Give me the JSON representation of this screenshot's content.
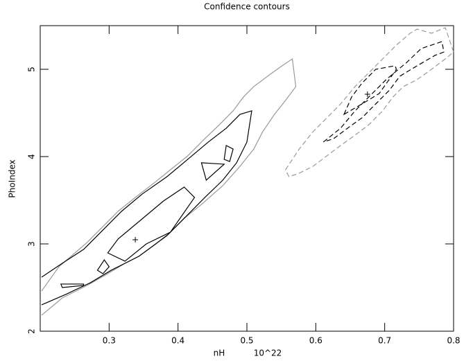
{
  "chart_data": {
    "type": "contour",
    "title": "Confidence contours",
    "x_label": "nH",
    "x_unit": "10^22",
    "y_label": "PhoIndex",
    "xlim": [
      0.2,
      0.8
    ],
    "ylim": [
      2,
      5.5
    ],
    "xticks": [
      0.3,
      0.4,
      0.5,
      0.6,
      0.7,
      0.8
    ],
    "yticks": [
      2,
      3,
      4,
      5
    ],
    "series": [
      {
        "color": "#999999",
        "dash": false,
        "closed": false,
        "x": [
          0.202,
          0.232,
          0.268,
          0.298,
          0.323,
          0.343,
          0.364,
          0.389,
          0.409,
          0.434,
          0.465,
          0.49,
          0.51,
          0.523,
          0.54,
          0.556,
          0.571,
          0.566,
          0.551,
          0.53,
          0.51,
          0.495,
          0.48,
          0.46,
          0.439,
          0.414,
          0.389,
          0.364,
          0.338,
          0.313,
          0.288,
          0.268,
          0.247,
          0.227,
          0.202
        ],
        "y": [
          2.183,
          2.381,
          2.524,
          2.659,
          2.778,
          2.857,
          2.976,
          3.135,
          3.294,
          3.452,
          3.667,
          3.889,
          4.087,
          4.286,
          4.484,
          4.643,
          4.802,
          5.119,
          5.04,
          4.921,
          4.802,
          4.683,
          4.524,
          4.365,
          4.206,
          4.008,
          3.849,
          3.69,
          3.532,
          3.373,
          3.175,
          3.016,
          2.873,
          2.738,
          2.46
        ]
      },
      {
        "color": "#000000",
        "dash": false,
        "closed": false,
        "x": [
          0.202,
          0.237,
          0.273,
          0.303,
          0.343,
          0.384,
          0.414,
          0.439,
          0.465,
          0.485,
          0.5,
          0.507,
          0.49,
          0.47,
          0.444,
          0.414,
          0.384,
          0.348,
          0.318,
          0.293,
          0.263,
          0.232,
          0.202
        ],
        "y": [
          2.302,
          2.421,
          2.556,
          2.698,
          2.857,
          3.095,
          3.333,
          3.532,
          3.73,
          3.929,
          4.167,
          4.524,
          4.484,
          4.325,
          4.167,
          3.968,
          3.77,
          3.571,
          3.373,
          3.175,
          2.937,
          2.778,
          2.619
        ]
      },
      {
        "color": "#000000",
        "dash": false,
        "closed": true,
        "x": [
          0.298,
          0.323,
          0.354,
          0.389,
          0.424,
          0.409,
          0.379,
          0.343,
          0.313
        ],
        "y": [
          2.897,
          2.802,
          3.0,
          3.135,
          3.532,
          3.651,
          3.492,
          3.254,
          3.056
        ]
      },
      {
        "color": "#000000",
        "dash": false,
        "closed": true,
        "x": [
          0.23,
          0.232,
          0.263,
          0.263
        ],
        "y": [
          2.54,
          2.5,
          2.524,
          2.54
        ]
      },
      {
        "color": "#000000",
        "dash": false,
        "closed": true,
        "x": [
          0.283,
          0.291,
          0.3,
          0.293
        ],
        "y": [
          2.698,
          2.659,
          2.738,
          2.817
        ]
      },
      {
        "color": "#000000",
        "dash": false,
        "closed": true,
        "x": [
          0.434,
          0.441,
          0.467
        ],
        "y": [
          3.929,
          3.73,
          3.913
        ]
      },
      {
        "color": "#000000",
        "dash": false,
        "closed": true,
        "x": [
          0.47,
          0.48,
          0.475,
          0.467
        ],
        "y": [
          4.127,
          4.087,
          3.944,
          3.968
        ]
      },
      {
        "color": "#999999",
        "dash": true,
        "closed": true,
        "x": [
          0.556,
          0.576,
          0.596,
          0.616,
          0.636,
          0.657,
          0.677,
          0.697,
          0.717,
          0.737,
          0.747,
          0.768,
          0.788,
          0.8,
          0.788,
          0.768,
          0.747,
          0.727,
          0.712,
          0.697,
          0.677,
          0.657,
          0.636,
          0.616,
          0.596,
          0.576,
          0.561
        ],
        "y": [
          3.849,
          4.087,
          4.286,
          4.444,
          4.603,
          4.802,
          4.96,
          5.119,
          5.278,
          5.413,
          5.46,
          5.413,
          5.476,
          5.198,
          5.119,
          5.0,
          4.881,
          4.802,
          4.683,
          4.524,
          4.365,
          4.246,
          4.127,
          4.008,
          3.889,
          3.81,
          3.77
        ]
      },
      {
        "color": "#000000",
        "dash": true,
        "closed": true,
        "x": [
          0.611,
          0.636,
          0.657,
          0.677,
          0.702,
          0.732,
          0.753,
          0.783,
          0.786,
          0.773,
          0.747,
          0.722,
          0.707,
          0.687,
          0.667,
          0.646,
          0.626
        ],
        "y": [
          4.167,
          4.325,
          4.524,
          4.683,
          4.881,
          5.079,
          5.238,
          5.317,
          5.198,
          5.159,
          5.04,
          4.921,
          4.762,
          4.603,
          4.444,
          4.325,
          4.206
        ]
      },
      {
        "color": "#000000",
        "dash": true,
        "closed": true,
        "x": [
          0.641,
          0.667,
          0.692,
          0.717,
          0.715,
          0.687,
          0.667,
          0.652
        ],
        "y": [
          4.484,
          4.603,
          4.722,
          5.0,
          5.04,
          5.0,
          4.841,
          4.683
        ]
      }
    ],
    "markers": [
      {
        "x": 0.338,
        "y": 3.048
      },
      {
        "x": 0.675,
        "y": 4.714
      }
    ]
  }
}
